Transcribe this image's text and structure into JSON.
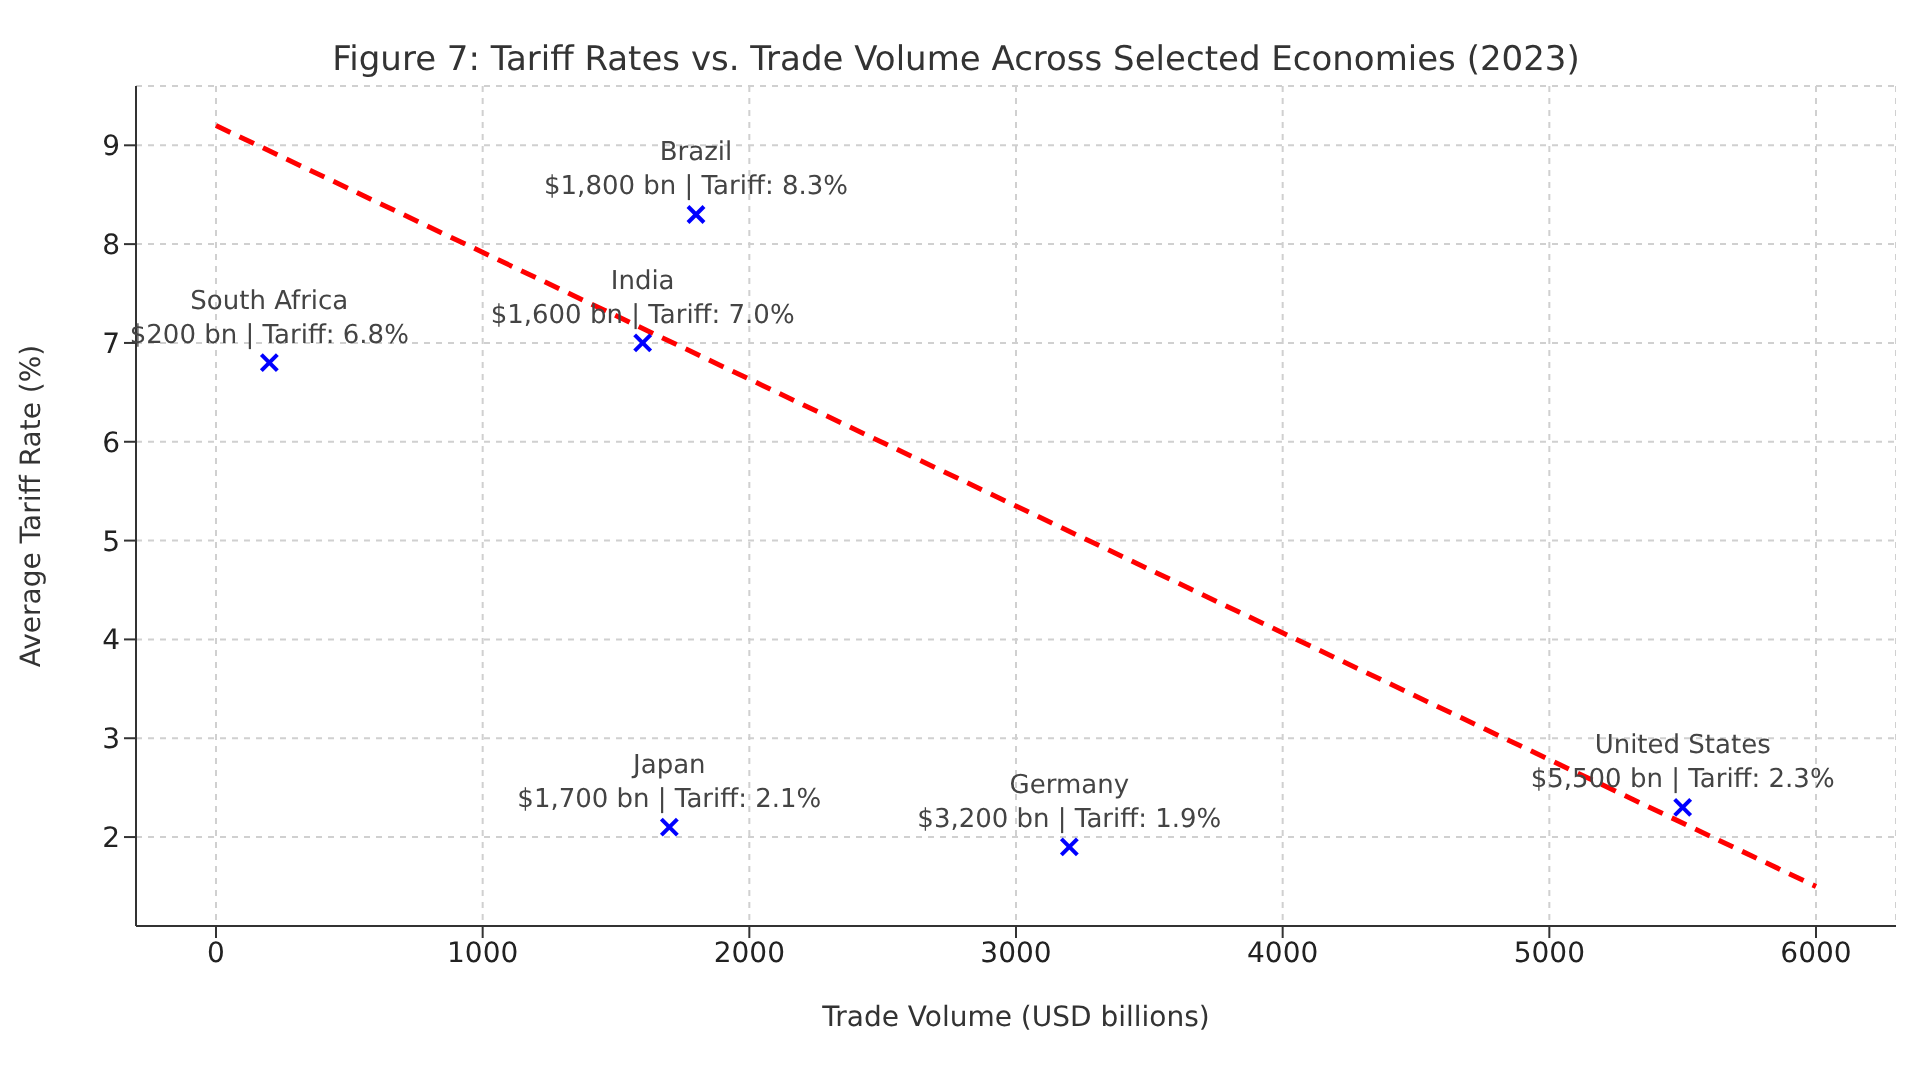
{
  "chart_data": {
    "type": "scatter",
    "title": "Figure 7: Tariff Rates vs. Trade Volume Across Selected Economies (2023)",
    "xlabel": "Trade Volume (USD billions)",
    "ylabel": "Average Tariff Rate (%)",
    "xlim": [
      -300,
      6300
    ],
    "xticks": [
      0,
      1000,
      2000,
      3000,
      4000,
      5000,
      6000
    ],
    "ylim": [
      1.1,
      9.6
    ],
    "yticks": [
      2,
      3,
      4,
      5,
      6,
      7,
      8,
      9
    ],
    "grid": true,
    "marker": "cross",
    "series": [
      {
        "color": "#0000ff",
        "x": [
          1800,
          1600,
          200,
          1700,
          3200,
          5500
        ],
        "values": [
          8.3,
          7.0,
          6.8,
          2.1,
          1.9,
          2.3
        ]
      },
      {
        "type": "line",
        "color": "#ff0000",
        "x": [
          0,
          6000
        ],
        "values": [
          9.2,
          1.5
        ],
        "line_style": "dashed",
        "marker": "none"
      }
    ],
    "annotations": [
      {
        "text": "Brazil\n$1,800 bn | Tariff: 8.3%",
        "x": 1800,
        "y": 8.3
      },
      {
        "text": "India\n$1,600 bn | Tariff: 7.0%",
        "x": 1600,
        "y": 7.0
      },
      {
        "text": "South Africa\n$200 bn | Tariff: 6.8%",
        "x": 200,
        "y": 6.8
      },
      {
        "text": "Japan\n$1,700 bn | Tariff: 2.1%",
        "x": 1700,
        "y": 2.1
      },
      {
        "text": "Germany\n$3,200 bn | Tariff: 1.9%",
        "x": 3200,
        "y": 1.9
      },
      {
        "text": "United States\n$5,500 bn | Tariff: 2.3%",
        "x": 5500,
        "y": 2.3
      }
    ]
  }
}
